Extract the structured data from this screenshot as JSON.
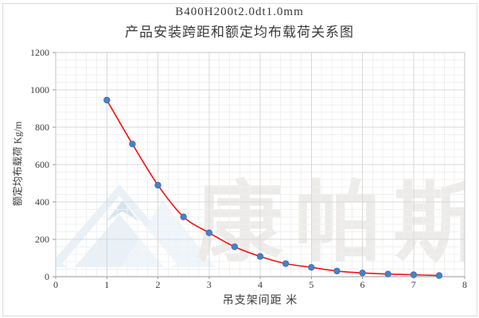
{
  "title": {
    "line1": "B400H200t2.0dt1.0mm",
    "line2": "产品安装跨距和额定均布载荷关系图"
  },
  "axes": {
    "x_title": "吊支架间距 米",
    "y_title": "额定均布载荷 Kg/m"
  },
  "watermark": {
    "text": "康帕斯"
  },
  "chart_data": {
    "type": "scatter",
    "title": "B400H200t2.0dt1.0mm 产品安装跨距和额定均布载荷关系图",
    "xlabel": "吊支架间距 米",
    "ylabel": "额定均布载荷 Kg/m",
    "x": [
      1,
      1.5,
      2,
      2.5,
      3,
      3.5,
      4,
      4.5,
      5,
      5.5,
      6,
      6.5,
      7,
      7.5
    ],
    "y": [
      945,
      710,
      490,
      320,
      235,
      160,
      108,
      70,
      50,
      30,
      20,
      14,
      10,
      6
    ],
    "series_name": "额定均布载荷",
    "trendline": "smooth-fit-curve",
    "xlim": [
      0,
      8
    ],
    "ylim": [
      0,
      1200
    ],
    "x_ticks": [
      0,
      1,
      2,
      3,
      4,
      5,
      6,
      7,
      8
    ],
    "y_ticks": [
      0,
      200,
      400,
      600,
      800,
      1000,
      1200
    ],
    "x_minor_step": 0.2,
    "y_minor_step": 40,
    "grid": "major+minor",
    "legend": "none"
  },
  "colors": {
    "trend_line": "#f01414",
    "marker_fill": "#4a80c4",
    "marker_stroke": "#3a70b2",
    "grid_major": "#d8d8d8",
    "grid_minor": "#f0f0f0",
    "plot_border": "#c6c6c6",
    "axis_line": "#9a9a9a",
    "watermark_text": "#edebe9",
    "watermark_blue_1": "#e8f1f8",
    "watermark_blue_2": "#eff6fb",
    "watermark_accent": "#d3e5f2"
  }
}
